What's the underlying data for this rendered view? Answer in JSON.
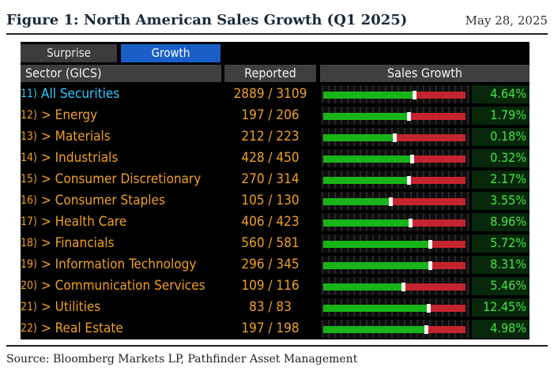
{
  "figure": {
    "title": "Figure 1: North American Sales Growth (Q1 2025)",
    "date": "May 28, 2025",
    "source": "Source: Bloomberg Markets LP, Pathfinder Asset Management"
  },
  "colors": {
    "accent_orange": "#f0a020",
    "highlight_cyan": "#32c8ff",
    "bar_green": "#18b418",
    "bar_red": "#c4242d",
    "pct_green": "#46e646",
    "tab_active": "#1a5fc8"
  },
  "tabs": [
    {
      "label": "Surprise",
      "active": false
    },
    {
      "label": "Growth",
      "active": true
    }
  ],
  "columns": {
    "sector": "Sector (GICS)",
    "reported": "Reported",
    "growth": "Sales Growth"
  },
  "rows": [
    {
      "num": "11)",
      "name": "All Securities",
      "reported": "2889 / 3109",
      "growth_pct": "4.64%",
      "bar_fraction": 0.64,
      "highlight": true
    },
    {
      "num": "12)",
      "name": "> Energy",
      "reported": "197 / 206",
      "growth_pct": "1.79%",
      "bar_fraction": 0.6,
      "highlight": false
    },
    {
      "num": "13)",
      "name": "> Materials",
      "reported": "212 / 223",
      "growth_pct": "0.18%",
      "bar_fraction": 0.5,
      "highlight": false
    },
    {
      "num": "14)",
      "name": "> Industrials",
      "reported": "428 / 450",
      "growth_pct": "0.32%",
      "bar_fraction": 0.62,
      "highlight": false
    },
    {
      "num": "15)",
      "name": "> Consumer Discretionary",
      "reported": "270 / 314",
      "growth_pct": "2.17%",
      "bar_fraction": 0.6,
      "highlight": false
    },
    {
      "num": "16)",
      "name": "> Consumer Staples",
      "reported": "105 / 130",
      "growth_pct": "3.55%",
      "bar_fraction": 0.47,
      "highlight": false
    },
    {
      "num": "17)",
      "name": "> Health Care",
      "reported": "406 / 423",
      "growth_pct": "8.96%",
      "bar_fraction": 0.61,
      "highlight": false
    },
    {
      "num": "18)",
      "name": "> Financials",
      "reported": "560 / 581",
      "growth_pct": "5.72%",
      "bar_fraction": 0.75,
      "highlight": false
    },
    {
      "num": "19)",
      "name": "> Information Technology",
      "reported": "296 / 345",
      "growth_pct": "8.31%",
      "bar_fraction": 0.75,
      "highlight": false
    },
    {
      "num": "20)",
      "name": "> Communication Services",
      "reported": "109 / 116",
      "growth_pct": "5.46%",
      "bar_fraction": 0.56,
      "highlight": false
    },
    {
      "num": "21)",
      "name": "> Utilities",
      "reported": "83 / 83",
      "growth_pct": "12.45%",
      "bar_fraction": 0.74,
      "highlight": false
    },
    {
      "num": "22)",
      "name": "> Real Estate",
      "reported": "197 / 198",
      "growth_pct": "4.98%",
      "bar_fraction": 0.72,
      "highlight": false
    }
  ]
}
